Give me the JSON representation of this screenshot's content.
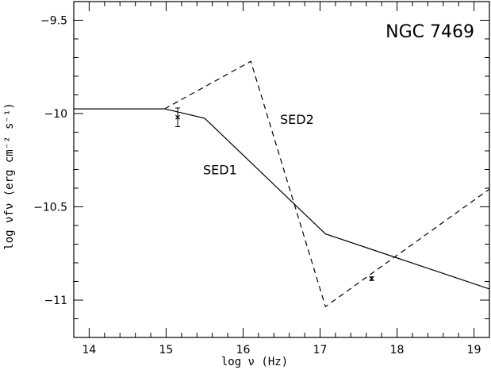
{
  "chart_data": {
    "type": "line",
    "title": "NGC 7469",
    "xlabel": "log ν (Hz)",
    "ylabel": "log νfν (erg cm⁻² s⁻¹)",
    "xlim": [
      13.8,
      19.2
    ],
    "ylim": [
      -11.2,
      -9.4
    ],
    "xticks": [
      14,
      15,
      16,
      17,
      18,
      19
    ],
    "xtick_labels": [
      "14",
      "15",
      "16",
      "17",
      "18",
      "19"
    ],
    "yticks": [
      -9.5,
      -10,
      -10.5,
      -11
    ],
    "ytick_labels": [
      "−9.5",
      "−10",
      "−10.5",
      "−11"
    ],
    "grid": false,
    "series": [
      {
        "name": "SED1",
        "style": "solid",
        "x": [
          13.8,
          14.98,
          15.5,
          17.07,
          19.2
        ],
        "y": [
          -9.975,
          -9.975,
          -10.025,
          -10.645,
          -10.94
        ]
      },
      {
        "name": "SED2",
        "style": "dashed",
        "x": [
          14.98,
          16.1,
          17.07,
          19.2
        ],
        "y": [
          -9.975,
          -9.72,
          -11.035,
          -10.405
        ]
      }
    ],
    "data_points": [
      {
        "x": 15.15,
        "y": -10.02,
        "yerr": 0.05
      },
      {
        "x": 17.67,
        "y": -10.885,
        "yerr": 0.01
      }
    ],
    "annotations": [
      {
        "text": "SED2",
        "x": 16.7,
        "y": -10.03
      },
      {
        "text": "SED1",
        "x": 15.7,
        "y": -10.3
      }
    ]
  }
}
